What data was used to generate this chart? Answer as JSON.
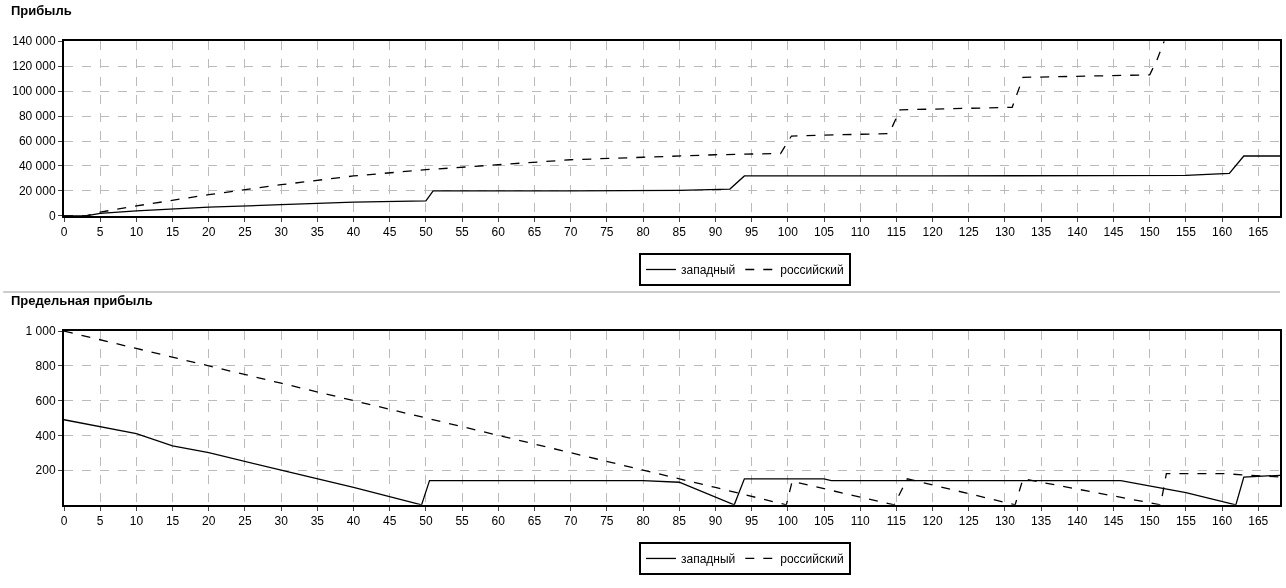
{
  "chart_data": [
    {
      "type": "line",
      "title": "Прибыль",
      "xlim": [
        0,
        168
      ],
      "xticks": [
        0,
        5,
        10,
        15,
        20,
        25,
        30,
        35,
        40,
        45,
        50,
        55,
        60,
        65,
        70,
        75,
        80,
        85,
        90,
        95,
        100,
        105,
        110,
        115,
        120,
        125,
        130,
        135,
        140,
        145,
        150,
        155,
        160,
        165
      ],
      "ylim": [
        0,
        140000
      ],
      "yticks": [
        0,
        {
          "value": 20000,
          "label": "20 000"
        },
        {
          "value": 40000,
          "label": "40 000"
        },
        {
          "value": 60000,
          "label": "60 000"
        },
        {
          "value": 80000,
          "label": "80 000"
        },
        {
          "value": 100000,
          "label": "100 000"
        },
        {
          "value": 120000,
          "label": "120 000"
        },
        {
          "value": 140000,
          "label": "140 000"
        }
      ],
      "grid": true,
      "legend": "bottom",
      "marker": "none",
      "series": [
        {
          "name": "западный",
          "color": "#000000",
          "line_style": "solid",
          "x": [
            0,
            3,
            5,
            10,
            20,
            30,
            40,
            50,
            51,
            70,
            85,
            92,
            94,
            120,
            155,
            161,
            163,
            168
          ],
          "values": [
            0,
            0,
            2000,
            4000,
            7000,
            9000,
            11000,
            12000,
            20000,
            20000,
            20500,
            21500,
            32000,
            32000,
            32500,
            34000,
            48000,
            48000
          ]
        },
        {
          "name": "российский",
          "color": "#000000",
          "line_style": "dashed",
          "x": [
            0,
            3,
            5,
            10,
            20,
            30,
            40,
            50,
            60,
            70,
            80,
            90,
            99,
            100.5,
            114,
            115.5,
            131,
            132.5,
            150,
            151,
            152
          ],
          "values": [
            0,
            0,
            3000,
            8000,
            17000,
            25000,
            32000,
            37000,
            41000,
            45000,
            47000,
            49000,
            50000,
            64000,
            66000,
            85000,
            87000,
            111000,
            113000,
            125000,
            140000
          ]
        }
      ]
    },
    {
      "type": "line",
      "title": "Предельная прибыль",
      "xlim": [
        0,
        168
      ],
      "xticks": [
        0,
        5,
        10,
        15,
        20,
        25,
        30,
        35,
        40,
        45,
        50,
        55,
        60,
        65,
        70,
        75,
        80,
        85,
        90,
        95,
        100,
        105,
        110,
        115,
        120,
        125,
        130,
        135,
        140,
        145,
        150,
        155,
        160,
        165
      ],
      "ylim": [
        0,
        1000
      ],
      "yticks": [
        200,
        400,
        600,
        800,
        {
          "value": 1000,
          "label": "1 000"
        }
      ],
      "grid": true,
      "legend": "bottom",
      "marker": "none",
      "series": [
        {
          "name": "западный",
          "color": "#000000",
          "line_style": "solid",
          "x": [
            0,
            10,
            15,
            20,
            30,
            40,
            49.4,
            50.5,
            65,
            80,
            85,
            92.6,
            94,
            105,
            106,
            133,
            140,
            146,
            155,
            161.9,
            163,
            168
          ],
          "values": [
            490,
            410,
            340,
            300,
            200,
            100,
            0,
            140,
            140,
            140,
            130,
            0,
            150,
            150,
            140,
            140,
            140,
            140,
            70,
            0,
            160,
            170
          ]
        },
        {
          "name": "российский",
          "color": "#000000",
          "line_style": "dashed",
          "x": [
            0,
            10,
            20,
            30,
            40,
            50,
            60,
            70,
            80,
            90,
            99.8,
            100.6,
            114.7,
            116.5,
            131.4,
            132.5,
            151.5,
            152.3,
            160,
            168
          ],
          "values": [
            1000,
            900,
            800,
            700,
            600,
            500,
            400,
            300,
            200,
            100,
            0,
            135,
            0,
            150,
            0,
            150,
            0,
            180,
            180,
            160
          ]
        }
      ]
    }
  ]
}
